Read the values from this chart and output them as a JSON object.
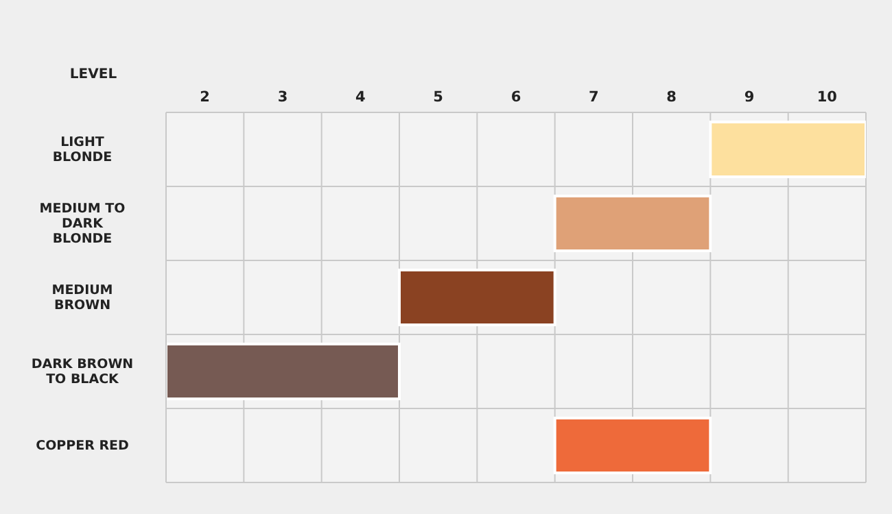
{
  "chart_data": {
    "type": "bar",
    "orientation": "horizontal",
    "xlabel": "LEVEL",
    "categories": [
      "LIGHT BLONDE",
      "MEDIUM TO DARK BLONDE",
      "MEDIUM BROWN",
      "DARK BROWN TO BLACK",
      "COPPER RED"
    ],
    "base": [
      8.5,
      6.5,
      4.5,
      1.5,
      6.5
    ],
    "values": [
      2,
      2,
      2,
      3,
      2
    ],
    "colors": [
      "#fde09e",
      "#dfa177",
      "#8a4222",
      "#765a53",
      "#ee6a3a"
    ],
    "xlim": [
      1.5,
      10.5
    ],
    "xticks": [
      2,
      3,
      4,
      5,
      6,
      7,
      8,
      9,
      10
    ],
    "grid": true
  }
}
